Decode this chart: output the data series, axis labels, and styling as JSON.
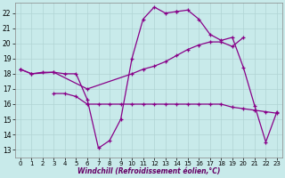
{
  "xlabel": "Windchill (Refroidissement éolien,°C)",
  "bg_color": "#c8eaea",
  "grid_color": "#b0d4d4",
  "line_color": "#880088",
  "xlim": [
    -0.5,
    23.5
  ],
  "ylim": [
    12.5,
    22.7
  ],
  "yticks": [
    13,
    14,
    15,
    16,
    17,
    18,
    19,
    20,
    21,
    22
  ],
  "xticks": [
    0,
    1,
    2,
    3,
    4,
    5,
    6,
    7,
    8,
    9,
    10,
    11,
    12,
    13,
    14,
    15,
    16,
    17,
    18,
    19,
    20,
    21,
    22,
    23
  ],
  "curves": [
    {
      "x": [
        0,
        1,
        2,
        3,
        4,
        5,
        6,
        7,
        8,
        9,
        10,
        11,
        12,
        13,
        14
      ],
      "y": [
        18.3,
        18.0,
        18.1,
        18.1,
        18.0,
        18.0,
        16.3,
        13.1,
        13.6,
        15.0,
        19.0,
        21.6,
        22.4,
        22.0,
        22.1
      ]
    },
    {
      "x": [
        0,
        1,
        3,
        6,
        10,
        11,
        12,
        13,
        14,
        15,
        16,
        17,
        18,
        19,
        20
      ],
      "y": [
        18.3,
        18.0,
        18.1,
        17.0,
        18.0,
        18.3,
        18.5,
        18.8,
        19.2,
        19.6,
        19.9,
        20.1,
        20.1,
        19.8,
        20.4
      ]
    },
    {
      "x": [
        3,
        4,
        5,
        6,
        7,
        8,
        9,
        10,
        11,
        12,
        13,
        14,
        15,
        16,
        17,
        18,
        19,
        20,
        21,
        22,
        23
      ],
      "y": [
        16.7,
        16.7,
        16.5,
        16.0,
        16.0,
        16.0,
        16.0,
        16.0,
        16.0,
        16.0,
        16.0,
        16.0,
        16.0,
        16.0,
        16.0,
        16.0,
        15.8,
        15.7,
        15.6,
        15.5,
        15.4
      ]
    },
    {
      "x": [
        14,
        15,
        16,
        17,
        18,
        19,
        20,
        21,
        22,
        23
      ],
      "y": [
        22.1,
        22.2,
        21.6,
        20.6,
        20.2,
        20.4,
        18.4,
        15.9,
        13.5,
        15.5
      ]
    }
  ]
}
